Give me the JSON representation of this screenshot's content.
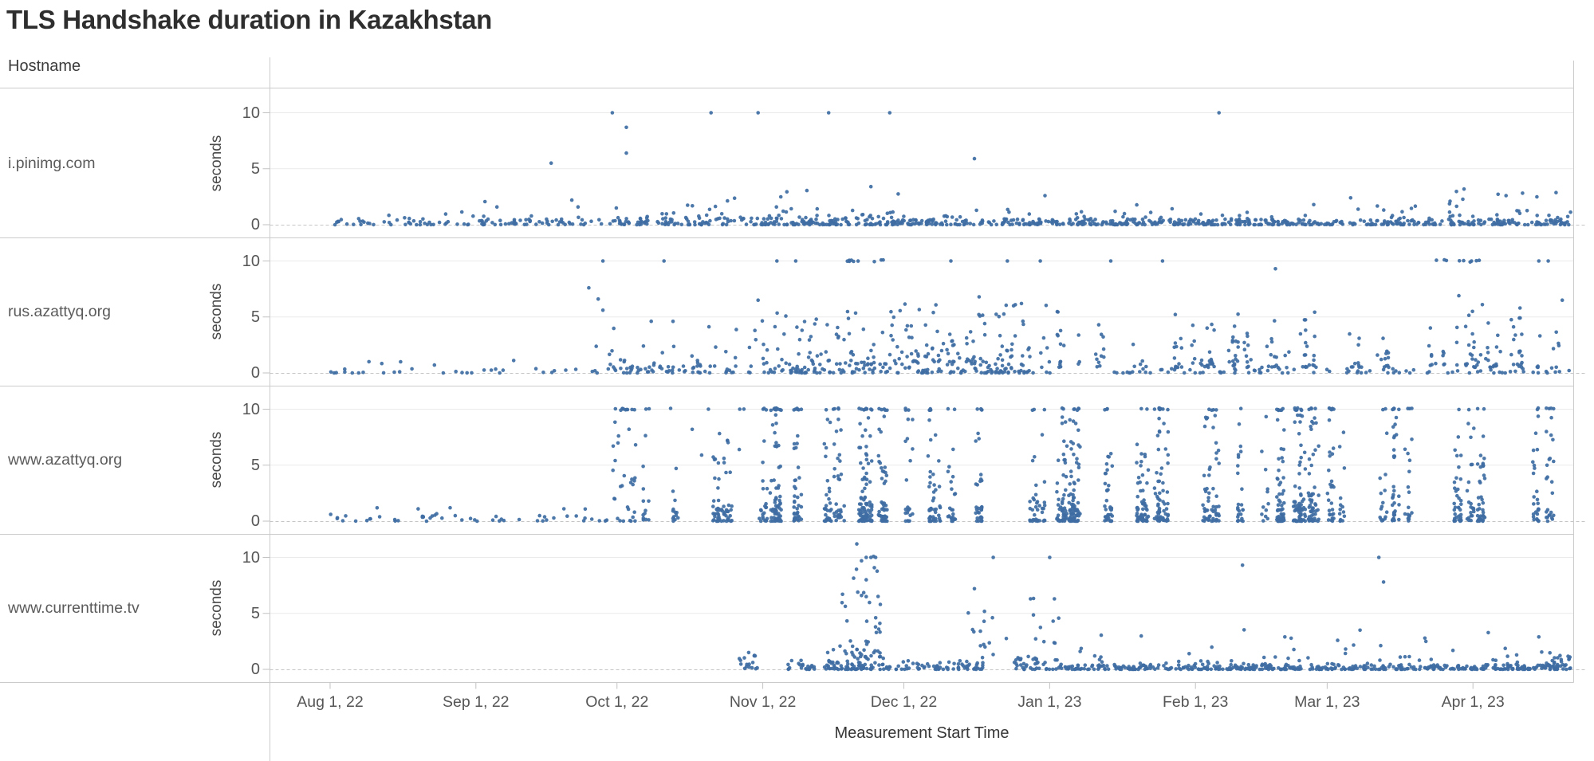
{
  "title": "TLS Handshake duration in Kazakhstan",
  "header": {
    "hostname_label": "Hostname"
  },
  "x_axis": {
    "title": "Measurement Start Time",
    "ticks": [
      "Aug 1, 22",
      "Sep 1, 22",
      "Oct 1, 22",
      "Nov 1, 22",
      "Dec 1, 22",
      "Jan 1, 23",
      "Feb 1, 23",
      "Mar 1, 23",
      "Apr 1, 23"
    ],
    "tick_days": [
      13,
      44,
      74,
      105,
      135,
      166,
      197,
      225,
      256
    ],
    "domain_days": [
      0,
      277
    ],
    "domain_dates": [
      "Jul 19, 2022",
      "Apr 22, 2023"
    ]
  },
  "y_axis": {
    "title": "seconds",
    "ticks": [
      "10",
      "5",
      "0"
    ],
    "tick_values": [
      10,
      5,
      0
    ],
    "range": [
      0,
      11.5
    ]
  },
  "colors": {
    "point": "#3e6da3",
    "grid": "#eaeaea",
    "zero_line": "#c6c6c6",
    "separator": "#cbcbcb",
    "tick_mark": "#c2c2c2",
    "title_text": "#2e2e2e",
    "label_text": "#5b5b5b",
    "tick_text": "#565656"
  },
  "chart_data": {
    "type": "scatter",
    "x_unit": "days since Jul 19, 2022 (t=13 is Aug 1, 22)",
    "y_unit": "seconds",
    "notes": "Faceted scatter of TLS handshake durations by hostname; many measurements cap at exactly 10 s forming runs on the 10-second gridline. Dense distributions are encoded as clusters {t:[start,end] days, n points, y:[min,max] seconds, bias, cols}; notable individual points are in outliers as [t, seconds].",
    "facets": [
      {
        "hostname": "i.pinimg.com",
        "clusters": [
          {
            "t": [
              12,
              44
            ],
            "n": 40,
            "y": [
              0,
              0.5
            ],
            "bias": "low"
          },
          {
            "t": [
              12,
              44
            ],
            "n": 8,
            "y": [
              0.5,
              1.5
            ],
            "bias": "low"
          },
          {
            "t": [
              44,
              74
            ],
            "n": 55,
            "y": [
              0,
              0.5
            ],
            "bias": "low"
          },
          {
            "t": [
              44,
              74
            ],
            "n": 10,
            "y": [
              0.5,
              2.2
            ],
            "bias": "low"
          },
          {
            "t": [
              74,
              105
            ],
            "n": 85,
            "y": [
              0,
              0.6
            ],
            "bias": "low"
          },
          {
            "t": [
              74,
              105
            ],
            "n": 18,
            "y": [
              0.6,
              2.4
            ],
            "bias": "low"
          },
          {
            "t": [
              105,
              135
            ],
            "n": 120,
            "y": [
              0,
              0.6
            ],
            "bias": "low"
          },
          {
            "t": [
              105,
              135
            ],
            "n": 28,
            "y": [
              0.6,
              3.2
            ],
            "bias": "low"
          },
          {
            "t": [
              135,
              200
            ],
            "n": 240,
            "y": [
              0,
              0.5
            ],
            "bias": "low"
          },
          {
            "t": [
              135,
              200
            ],
            "n": 30,
            "y": [
              0.5,
              1.8
            ],
            "bias": "low"
          },
          {
            "t": [
              200,
              277
            ],
            "n": 270,
            "y": [
              0,
              0.5
            ],
            "bias": "low"
          },
          {
            "t": [
              200,
              277
            ],
            "n": 35,
            "y": [
              0.5,
              2.0
            ],
            "bias": "low"
          },
          {
            "t": [
              250,
              277
            ],
            "n": 10,
            "y": [
              1.5,
              3.2
            ],
            "bias": "uniform"
          }
        ],
        "outliers": [
          [
            60,
            5.5
          ],
          [
            73,
            10
          ],
          [
            76,
            8.7
          ],
          [
            76,
            6.4
          ],
          [
            94,
            10
          ],
          [
            104,
            10
          ],
          [
            119,
            10
          ],
          [
            132,
            10
          ],
          [
            128,
            3.4
          ],
          [
            150,
            5.9
          ],
          [
            165,
            2.6
          ],
          [
            202,
            10
          ],
          [
            230,
            2.4
          ]
        ]
      },
      {
        "hostname": "rus.azattyq.org",
        "clusters": [
          {
            "t": [
              13,
              68
            ],
            "n": 28,
            "y": [
              0,
              0.4
            ],
            "bias": "low"
          },
          {
            "t": [
              13,
              68
            ],
            "n": 5,
            "y": [
              0.5,
              1.3
            ],
            "bias": "uniform"
          },
          {
            "t": [
              68,
              105
            ],
            "n": 55,
            "y": [
              0,
              0.6
            ],
            "bias": "low"
          },
          {
            "t": [
              68,
              105
            ],
            "n": 28,
            "y": [
              0.6,
              3.5
            ],
            "bias": "low"
          },
          {
            "t": [
              68,
              105
            ],
            "n": 7,
            "y": [
              3.5,
              5.2
            ],
            "bias": "uniform"
          },
          {
            "t": [
              105,
              135
            ],
            "n": 70,
            "y": [
              0,
              0.8
            ],
            "bias": "low"
          },
          {
            "t": [
              105,
              135
            ],
            "n": 55,
            "y": [
              0.8,
              3.5
            ],
            "bias": "low"
          },
          {
            "t": [
              105,
              135
            ],
            "n": 20,
            "y": [
              3.5,
              5.6
            ],
            "bias": "uniform"
          },
          {
            "t": [
              122,
              131
            ],
            "n": 9,
            "y": [
              9.9,
              10.1
            ],
            "bias": "uniform"
          },
          {
            "t": [
              135,
              166
            ],
            "n": 80,
            "y": [
              0,
              1
            ],
            "bias": "low"
          },
          {
            "t": [
              135,
              166
            ],
            "n": 70,
            "y": [
              1,
              4
            ],
            "bias": "low"
          },
          {
            "t": [
              135,
              166
            ],
            "n": 20,
            "y": [
              4,
              6.5
            ],
            "bias": "uniform"
          },
          {
            "t": [
              166,
              277
            ],
            "n": 90,
            "y": [
              0,
              0.5
            ],
            "bias": "low"
          },
          {
            "t": [
              166,
              277
            ],
            "n": 200,
            "y": [
              0.5,
              3.5
            ],
            "bias": "low",
            "cols": 46,
            "seed": 201
          },
          {
            "t": [
              166,
              277
            ],
            "n": 28,
            "y": [
              3.5,
              5.5
            ],
            "bias": "uniform",
            "cols": 46,
            "seed": 201
          },
          {
            "t": [
              246,
              258
            ],
            "n": 9,
            "y": [
              9.9,
              10.1
            ],
            "bias": "uniform"
          }
        ],
        "outliers": [
          [
            71,
            10
          ],
          [
            68,
            7.6
          ],
          [
            70,
            6.6
          ],
          [
            71,
            5.6
          ],
          [
            84,
            10
          ],
          [
            104,
            6.5
          ],
          [
            108,
            10
          ],
          [
            112,
            10
          ],
          [
            145,
            10
          ],
          [
            151,
            6.8
          ],
          [
            157,
            10
          ],
          [
            160,
            6.2
          ],
          [
            164,
            10
          ],
          [
            179,
            10
          ],
          [
            190,
            10
          ],
          [
            214,
            9.3
          ],
          [
            253,
            6.9
          ],
          [
            258,
            6.1
          ],
          [
            266,
            5.8
          ],
          [
            270,
            10
          ],
          [
            272,
            10
          ],
          [
            275,
            6.5
          ]
        ]
      },
      {
        "hostname": "www.azattyq.org",
        "clusters": [
          {
            "t": [
              13,
              72
            ],
            "n": 45,
            "y": [
              0,
              0.5
            ],
            "bias": "low"
          },
          {
            "t": [
              13,
              72
            ],
            "n": 8,
            "y": [
              0.5,
              1.2
            ],
            "bias": "uniform"
          },
          {
            "t": [
              73,
              78
            ],
            "n": 28,
            "y": [
              0,
              9.5
            ],
            "bias": "low"
          },
          {
            "t": [
              73,
              78
            ],
            "n": 10,
            "y": [
              9.9,
              10.1
            ],
            "bias": "uniform"
          },
          {
            "t": [
              79,
              105
            ],
            "n": 55,
            "y": [
              0,
              1
            ],
            "bias": "low",
            "cols": 8,
            "seed": 304
          },
          {
            "t": [
              79,
              105
            ],
            "n": 40,
            "y": [
              1,
              8
            ],
            "bias": "low",
            "cols": 8,
            "seed": 304
          },
          {
            "t": [
              79,
              105
            ],
            "n": 6,
            "y": [
              9.9,
              10.1
            ],
            "bias": "uniform"
          },
          {
            "t": [
              105,
              135
            ],
            "n": 150,
            "y": [
              0,
              1
            ],
            "bias": "low",
            "cols": 12,
            "seed": 301
          },
          {
            "t": [
              105,
              135
            ],
            "n": 160,
            "y": [
              1,
              9.5
            ],
            "bias": "low",
            "cols": 12,
            "seed": 301
          },
          {
            "t": [
              105,
              135
            ],
            "n": 35,
            "y": [
              9.9,
              10.1
            ],
            "bias": "uniform",
            "cols": 12,
            "seed": 301
          },
          {
            "t": [
              135,
              206
            ],
            "n": 230,
            "y": [
              0,
              1
            ],
            "bias": "low",
            "cols": 20,
            "seed": 302
          },
          {
            "t": [
              135,
              206
            ],
            "n": 260,
            "y": [
              1,
              9.5
            ],
            "bias": "low",
            "cols": 20,
            "seed": 302
          },
          {
            "t": [
              135,
              206
            ],
            "n": 40,
            "y": [
              9.9,
              10.1
            ],
            "bias": "uniform",
            "cols": 20,
            "seed": 302
          },
          {
            "t": [
              206,
              277
            ],
            "n": 200,
            "y": [
              0,
              1
            ],
            "bias": "low",
            "cols": 20,
            "seed": 303
          },
          {
            "t": [
              206,
              277
            ],
            "n": 260,
            "y": [
              1,
              9.5
            ],
            "bias": "low",
            "cols": 20,
            "seed": 303
          },
          {
            "t": [
              206,
              277
            ],
            "n": 45,
            "y": [
              9.9,
              10.1
            ],
            "bias": "uniform",
            "cols": 20,
            "seed": 303
          }
        ],
        "outliers": [
          [
            90,
            8.2
          ],
          [
            92,
            5.9
          ],
          [
            100,
            6.4
          ],
          [
            120,
            10
          ],
          [
            126,
            10
          ],
          [
            127,
            10
          ],
          [
            128,
            10
          ]
        ]
      },
      {
        "hostname": "www.currenttime.tv",
        "clusters": [
          {
            "t": [
              100,
              104
            ],
            "n": 16,
            "y": [
              0,
              1.6
            ],
            "bias": "low"
          },
          {
            "t": [
              110,
              116
            ],
            "n": 22,
            "y": [
              0,
              0.9
            ],
            "bias": "low"
          },
          {
            "t": [
              118,
              131
            ],
            "n": 90,
            "y": [
              0,
              1.8
            ],
            "bias": "low"
          },
          {
            "t": [
              121,
              130
            ],
            "n": 22,
            "y": [
              2,
              7
            ],
            "bias": "uniform"
          },
          {
            "t": [
              124,
              130
            ],
            "n": 5,
            "y": [
              8,
              10.1
            ],
            "bias": "uniform"
          },
          {
            "t": [
              131,
              152
            ],
            "n": 70,
            "y": [
              0,
              0.8
            ],
            "bias": "low"
          },
          {
            "t": [
              148,
              157
            ],
            "n": 14,
            "y": [
              1,
              5.2
            ],
            "bias": "uniform"
          },
          {
            "t": [
              158,
              168
            ],
            "n": 40,
            "y": [
              0,
              1.2
            ],
            "bias": "low"
          },
          {
            "t": [
              160,
              168
            ],
            "n": 10,
            "y": [
              2,
              6.5
            ],
            "bias": "uniform"
          },
          {
            "t": [
              168,
              277
            ],
            "n": 430,
            "y": [
              0,
              0.45
            ],
            "bias": "low"
          },
          {
            "t": [
              168,
              277
            ],
            "n": 45,
            "y": [
              0.5,
              2
            ],
            "bias": "low"
          },
          {
            "t": [
              168,
              277
            ],
            "n": 9,
            "y": [
              2,
              3.6
            ],
            "bias": "uniform"
          },
          {
            "t": [
              271,
              277
            ],
            "n": 22,
            "y": [
              0.3,
              2
            ],
            "bias": "low"
          }
        ],
        "outliers": [
          [
            102,
            1.5
          ],
          [
            125,
            11.2
          ],
          [
            126,
            9.7
          ],
          [
            126,
            6.6
          ],
          [
            127,
            10
          ],
          [
            127,
            8.0
          ],
          [
            128,
            10
          ],
          [
            129,
            10
          ],
          [
            130,
            5.8
          ],
          [
            150,
            7.2
          ],
          [
            154,
            10
          ],
          [
            166,
            10
          ],
          [
            167,
            6.3
          ],
          [
            207,
            9.3
          ],
          [
            216,
            2.9
          ],
          [
            232,
            3.5
          ],
          [
            236,
            10
          ],
          [
            237,
            7.8
          ],
          [
            246,
            2.5
          ],
          [
            270,
            2.9
          ]
        ]
      }
    ]
  }
}
